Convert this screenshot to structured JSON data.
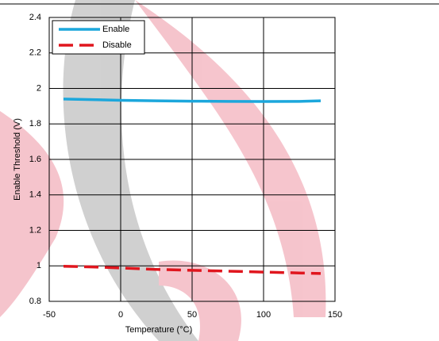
{
  "chart_data": {
    "type": "line",
    "x_label": "Temperature (°C)",
    "y_label": "Enable Threshold (V)",
    "x": [
      -40,
      -20,
      0,
      25,
      50,
      75,
      100,
      125,
      140
    ],
    "series": [
      {
        "name": "Enable",
        "color": "#1ca7dc",
        "style": "solid",
        "values": [
          1.94,
          1.937,
          1.933,
          1.93,
          1.928,
          1.927,
          1.926,
          1.927,
          1.93
        ]
      },
      {
        "name": "Disable",
        "color": "#e0161e",
        "style": "dashed",
        "values": [
          0.998,
          0.994,
          0.988,
          0.98,
          0.975,
          0.97,
          0.965,
          0.96,
          0.957
        ]
      }
    ],
    "xlim": [
      -50,
      150
    ],
    "xticks": [
      -50,
      0,
      50,
      100,
      150
    ],
    "ylim": [
      0.8,
      2.4
    ],
    "yticks": [
      0.8,
      1,
      1.2,
      1.4,
      1.6,
      1.8,
      2,
      2.2,
      2.4
    ],
    "grid": true,
    "legend": "top-left"
  }
}
